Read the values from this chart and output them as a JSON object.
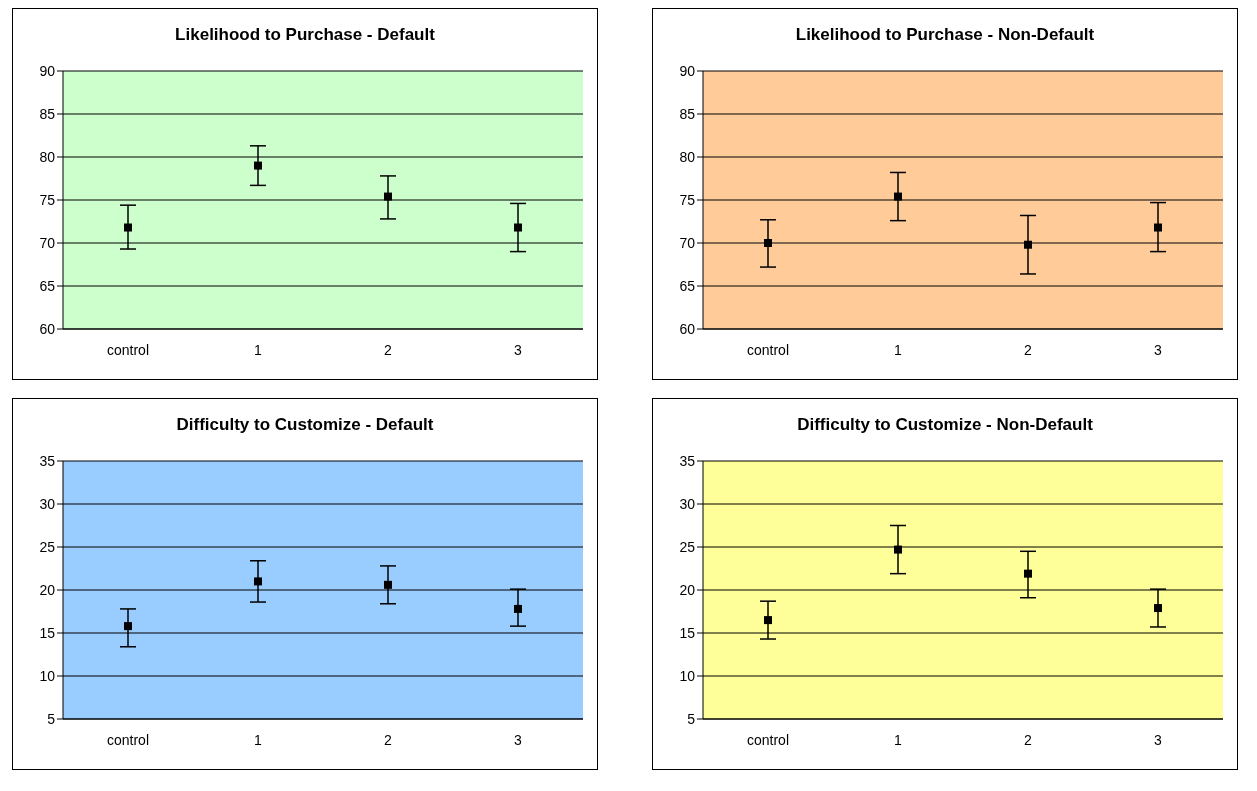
{
  "chart_data": [
    {
      "type": "scatter",
      "title": "Likelihood to Purchase - Default",
      "categories": [
        "control",
        "1",
        "2",
        "3"
      ],
      "series": [
        {
          "color": "#000000",
          "values": [
            71.8,
            79.0,
            75.4,
            71.8
          ],
          "errors": [
            [
              69.3,
              74.4
            ],
            [
              76.7,
              81.3
            ],
            [
              72.8,
              77.8
            ],
            [
              69.0,
              74.6
            ]
          ]
        }
      ],
      "ylim": [
        60,
        90
      ],
      "yticks": [
        60,
        65,
        70,
        75,
        80,
        85,
        90
      ],
      "grid": "y",
      "legend": false,
      "marker": "square"
    },
    {
      "type": "scatter",
      "title": "Likelihood to Purchase - Non-Default",
      "categories": [
        "control",
        "1",
        "2",
        "3"
      ],
      "series": [
        {
          "color": "#000000",
          "values": [
            70.0,
            75.4,
            69.8,
            71.8
          ],
          "errors": [
            [
              67.2,
              72.7
            ],
            [
              72.6,
              78.2
            ],
            [
              66.4,
              73.2
            ],
            [
              69.0,
              74.7
            ]
          ]
        }
      ],
      "ylim": [
        60,
        90
      ],
      "yticks": [
        60,
        65,
        70,
        75,
        80,
        85,
        90
      ],
      "grid": "y",
      "legend": false,
      "marker": "square"
    },
    {
      "type": "scatter",
      "title": "Difficulty to Customize - Default",
      "categories": [
        "control",
        "1",
        "2",
        "3"
      ],
      "series": [
        {
          "color": "#000000",
          "values": [
            15.8,
            21.0,
            20.6,
            17.8
          ],
          "errors": [
            [
              13.4,
              17.8
            ],
            [
              18.6,
              23.4
            ],
            [
              18.4,
              22.8
            ],
            [
              15.8,
              20.1
            ]
          ]
        }
      ],
      "ylim": [
        5,
        35
      ],
      "yticks": [
        5,
        10,
        15,
        20,
        25,
        30,
        35
      ],
      "grid": "y",
      "legend": false,
      "marker": "square"
    },
    {
      "type": "scatter",
      "title": "Difficulty to Customize - Non-Default",
      "categories": [
        "control",
        "1",
        "2",
        "3"
      ],
      "series": [
        {
          "color": "#000000",
          "values": [
            16.5,
            24.7,
            21.9,
            17.9
          ],
          "errors": [
            [
              14.3,
              18.7
            ],
            [
              21.9,
              27.5
            ],
            [
              19.1,
              24.5
            ],
            [
              15.7,
              20.1
            ]
          ]
        }
      ],
      "ylim": [
        5,
        35
      ],
      "yticks": [
        5,
        10,
        15,
        20,
        25,
        30,
        35
      ],
      "grid": "y",
      "legend": false,
      "marker": "square"
    }
  ]
}
